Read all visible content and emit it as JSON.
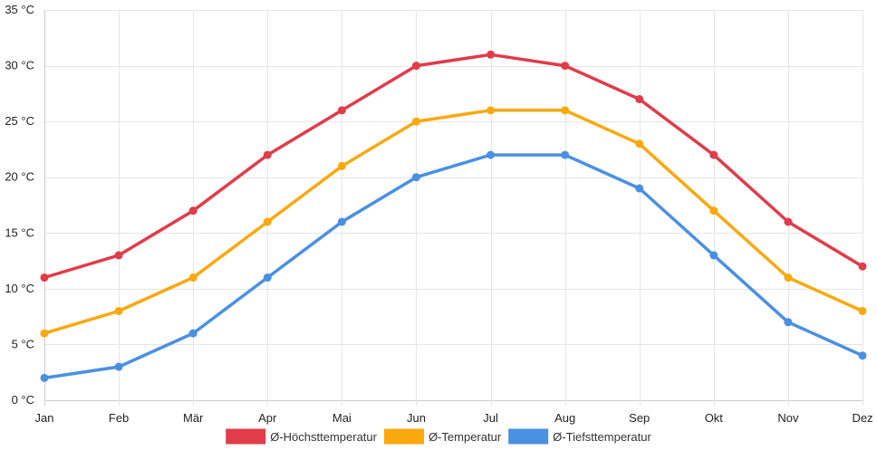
{
  "chart_data": {
    "type": "line",
    "title": "",
    "xlabel": "",
    "ylabel": "",
    "categories": [
      "Jan",
      "Feb",
      "Mär",
      "Apr",
      "Mai",
      "Jun",
      "Jul",
      "Aug",
      "Sep",
      "Okt",
      "Nov",
      "Dez"
    ],
    "ylim": [
      0,
      35
    ],
    "yticks": [
      0,
      5,
      10,
      15,
      20,
      25,
      30,
      35
    ],
    "y_unit": "°C",
    "grid": true,
    "legend_position": "bottom",
    "series": [
      {
        "name": "Ø-Höchsttemperatur",
        "color": "#e03c4a",
        "values": [
          11,
          13,
          17,
          22,
          26,
          30,
          31,
          30,
          27,
          22,
          16,
          12
        ]
      },
      {
        "name": "Ø-Temperatur",
        "color": "#f9a90e",
        "values": [
          6,
          8,
          11,
          16,
          21,
          25,
          26,
          26,
          23,
          17,
          11,
          8
        ]
      },
      {
        "name": "Ø-Tiefsttemperatur",
        "color": "#4a90e2",
        "values": [
          2,
          3,
          6,
          11,
          16,
          20,
          22,
          22,
          19,
          13,
          7,
          4
        ]
      }
    ]
  }
}
